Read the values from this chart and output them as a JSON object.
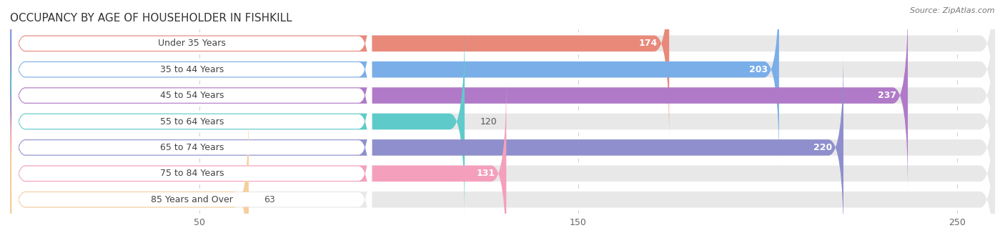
{
  "title": "OCCUPANCY BY AGE OF HOUSEHOLDER IN FISHKILL",
  "source": "Source: ZipAtlas.com",
  "categories": [
    "Under 35 Years",
    "35 to 44 Years",
    "45 to 54 Years",
    "55 to 64 Years",
    "65 to 74 Years",
    "75 to 84 Years",
    "85 Years and Over"
  ],
  "values": [
    174,
    203,
    237,
    120,
    220,
    131,
    63
  ],
  "bar_colors": [
    "#E8897A",
    "#7AAEE8",
    "#B07AC8",
    "#5ECBCA",
    "#8E8FCC",
    "#F4A0BC",
    "#F5CFA0"
  ],
  "bar_bg_color": "#E8E8E8",
  "row_bg_color": "#FFFFFF",
  "xlim_data": [
    0,
    260
  ],
  "xticks": [
    50,
    150,
    250
  ],
  "title_color": "#333333",
  "title_fontsize": 11,
  "label_fontsize": 9,
  "value_fontsize": 9,
  "figsize": [
    14.06,
    3.4
  ],
  "dpi": 100
}
